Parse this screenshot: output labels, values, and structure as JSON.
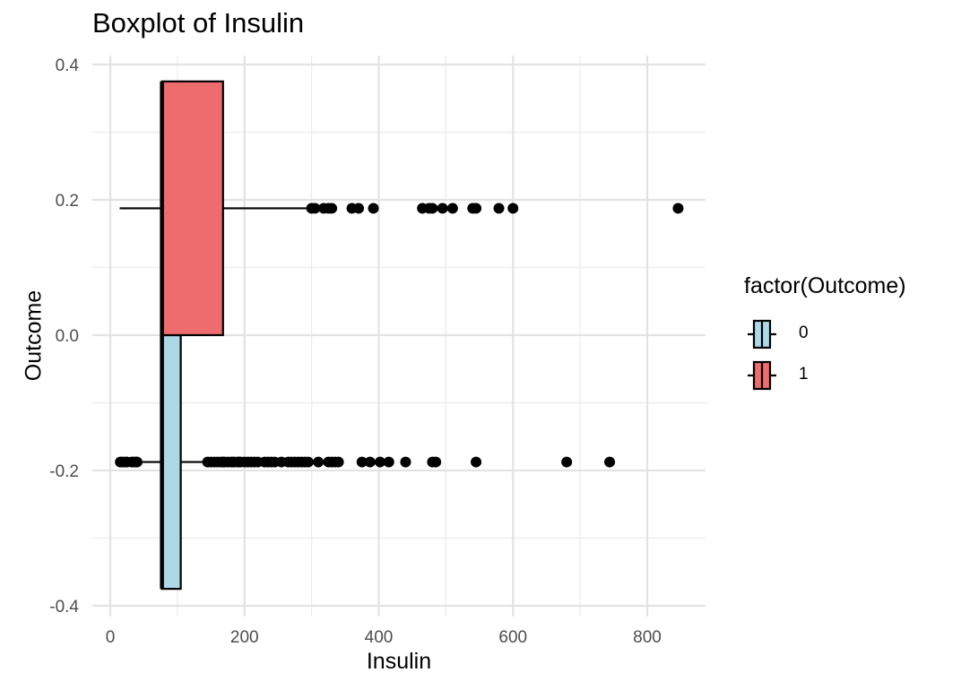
{
  "chart_data": {
    "type": "boxplot",
    "title": "Boxplot of Insulin",
    "xlabel": "Insulin",
    "ylabel": "Outcome",
    "xlim": [
      0,
      846
    ],
    "ylim": [
      -0.4,
      0.4
    ],
    "x_ticks": [
      0,
      200,
      400,
      600,
      800
    ],
    "y_ticks": [
      0.4,
      0.2,
      0.0,
      -0.2,
      -0.4
    ],
    "y_tick_labels": [
      "0.4",
      "0.2",
      "0.0",
      "-0.2",
      "-0.4"
    ],
    "grid": true,
    "legend": {
      "title": "factor(Outcome)",
      "placement": "right",
      "entries": [
        {
          "label": "0",
          "color": "#add8e6"
        },
        {
          "label": "1",
          "color": "#ee6b6e"
        }
      ]
    },
    "series": [
      {
        "name": "0",
        "color": "#add8e6",
        "box_y_range": [
          -0.375,
          0.0
        ],
        "whisker_y": -0.1875,
        "whisker_low": 15,
        "q1": 77,
        "median": 77,
        "q3": 105,
        "whisker_high": 210,
        "outliers": [
          15,
          18,
          22,
          25,
          32,
          35,
          38,
          40,
          145,
          150,
          155,
          160,
          165,
          168,
          170,
          175,
          180,
          182,
          185,
          190,
          192,
          194,
          200,
          205,
          210,
          215,
          220,
          230,
          235,
          240,
          245,
          255,
          265,
          270,
          275,
          280,
          285,
          290,
          295,
          310,
          325,
          330,
          335,
          340,
          375,
          387,
          402,
          415,
          440,
          480,
          485,
          545,
          680,
          744
        ]
      },
      {
        "name": "1",
        "color": "#ee6b6e",
        "box_y_range": [
          0.0,
          0.375
        ],
        "whisker_y": 0.1875,
        "whisker_low": 14,
        "q1": 77,
        "median": 77,
        "q3": 168,
        "whisker_high": 293,
        "outliers": [
          300,
          305,
          318,
          325,
          330,
          360,
          370,
          392,
          465,
          475,
          480,
          495,
          510,
          540,
          545,
          579,
          600,
          846
        ]
      }
    ]
  }
}
